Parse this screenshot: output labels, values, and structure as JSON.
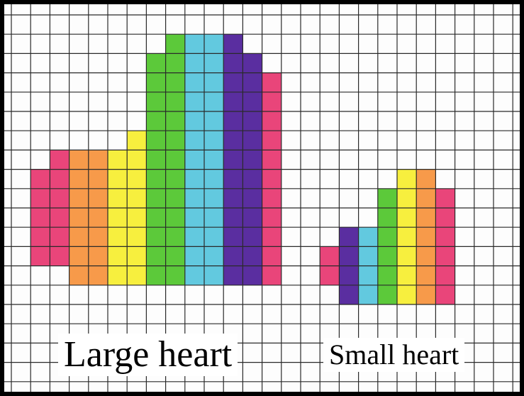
{
  "captions": {
    "large": "Large heart",
    "small": "Small heart"
  },
  "colors": {
    "pink": "#e9457a",
    "orange": "#f79a4a",
    "yellow": "#f7ef3e",
    "green": "#5cc93a",
    "cyan": "#62c9df",
    "purple": "#5a2ea0",
    "grid": "#2a2a2a",
    "paper": "#fdfdfd"
  },
  "grid": {
    "columns": 27,
    "rows": 20
  },
  "pictures": [
    {
      "name": "large-heart",
      "columns": [
        {
          "col": 1,
          "top": 8,
          "bottom": 12,
          "color": "pink"
        },
        {
          "col": 2,
          "top": 7,
          "bottom": 12,
          "color": "pink"
        },
        {
          "col": 3,
          "top": 7,
          "bottom": 13,
          "color": "orange"
        },
        {
          "col": 4,
          "top": 7,
          "bottom": 13,
          "color": "orange"
        },
        {
          "col": 5,
          "top": 7,
          "bottom": 13,
          "color": "yellow"
        },
        {
          "col": 6,
          "top": 6,
          "bottom": 13,
          "color": "yellow"
        },
        {
          "col": 7,
          "top": 2,
          "bottom": 13,
          "color": "green"
        },
        {
          "col": 8,
          "top": 1,
          "bottom": 13,
          "color": "green"
        },
        {
          "col": 9,
          "top": 1,
          "bottom": 13,
          "color": "cyan"
        },
        {
          "col": 10,
          "top": 1,
          "bottom": 13,
          "color": "cyan"
        },
        {
          "col": 11,
          "top": 1,
          "bottom": 13,
          "color": "purple"
        },
        {
          "col": 12,
          "top": 2,
          "bottom": 13,
          "color": "purple"
        },
        {
          "col": 13,
          "top": 3,
          "bottom": 13,
          "color": "pink"
        }
      ]
    },
    {
      "name": "small-heart",
      "columns": [
        {
          "col": 16,
          "top": 12,
          "bottom": 13,
          "color": "pink"
        },
        {
          "col": 17,
          "top": 11,
          "bottom": 14,
          "color": "purple"
        },
        {
          "col": 18,
          "top": 11,
          "bottom": 14,
          "color": "cyan"
        },
        {
          "col": 19,
          "top": 9,
          "bottom": 14,
          "color": "green"
        },
        {
          "col": 20,
          "top": 8,
          "bottom": 14,
          "color": "yellow"
        },
        {
          "col": 21,
          "top": 8,
          "bottom": 14,
          "color": "orange"
        },
        {
          "col": 22,
          "top": 9,
          "bottom": 14,
          "color": "pink"
        }
      ]
    }
  ]
}
